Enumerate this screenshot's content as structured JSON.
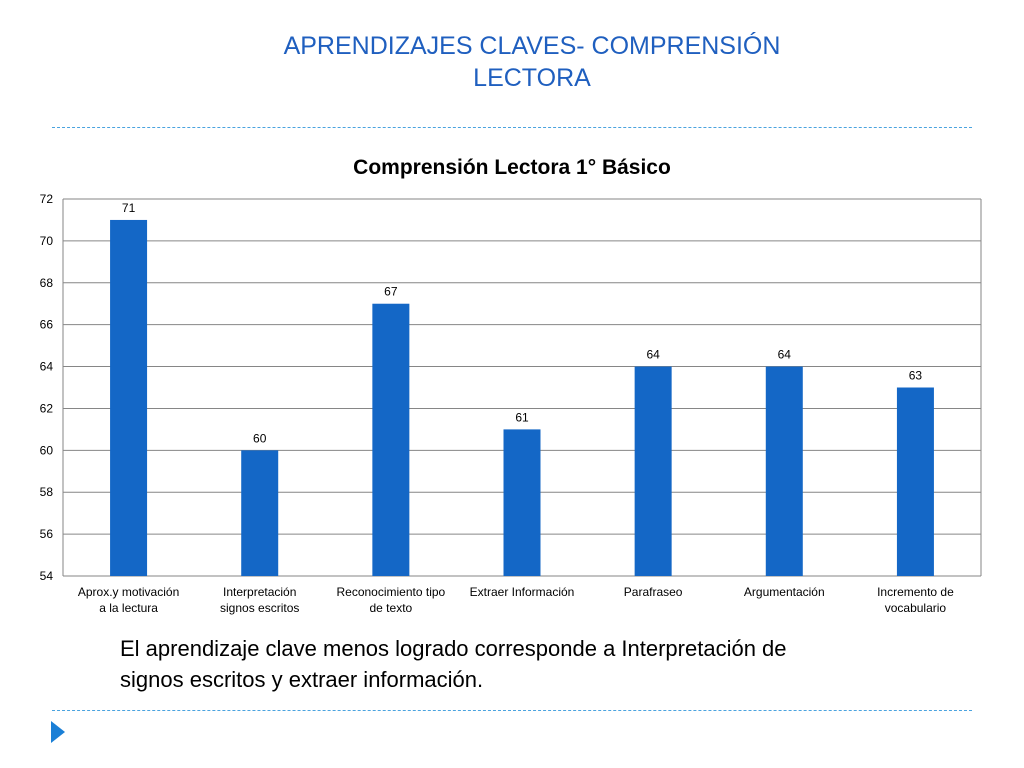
{
  "slide": {
    "title_line1": "APRENDIZAJES  CLAVES- COMPRENSIÓN",
    "title_line2": "LECTORA",
    "note_line1": "El aprendizaje clave menos logrado corresponde a Interpretación de",
    "note_line2": "signos escritos y extraer información."
  },
  "colors": {
    "title": "#1f5fbf",
    "bar": "#1467c6",
    "divider": "#4aa3df",
    "bullet": "#1a7fd6"
  },
  "chart_data": {
    "type": "bar",
    "title": "Comprensión Lectora 1° Básico",
    "xlabel": "",
    "ylabel": "",
    "categories": [
      [
        "Aprox.y motivación",
        "a la lectura"
      ],
      [
        "Interpretación",
        "signos escritos"
      ],
      [
        "Reconocimiento tipo",
        "de texto"
      ],
      [
        "Extraer Información"
      ],
      [
        "Parafraseo"
      ],
      [
        "Argumentación"
      ],
      [
        "Incremento de",
        "vocabulario"
      ]
    ],
    "values": [
      71,
      60,
      67,
      61,
      64,
      64,
      63
    ],
    "ylim": [
      54,
      72
    ],
    "yticks": [
      54,
      56,
      58,
      60,
      62,
      64,
      66,
      68,
      70,
      72
    ],
    "grid": true,
    "legend": "none",
    "data_labels": true
  }
}
